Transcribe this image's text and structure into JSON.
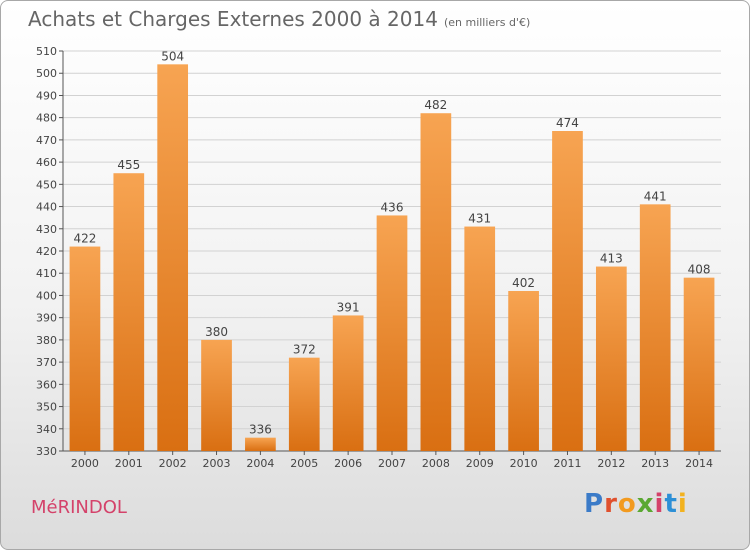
{
  "header": {
    "title": "Achats et Charges Externes 2000 à 2014",
    "subtitle": "(en milliers d'€)"
  },
  "footer": {
    "commune": "MéRINDOL",
    "logo_text": "Proxiti"
  },
  "colors": {
    "bar_top": "#f7a452",
    "bar_bottom": "#d96f12",
    "grid": "#d2d2d2",
    "axis": "#555555",
    "commune_text": "#d4426a",
    "logo_letters": [
      "#3b7bc8",
      "#e0502d",
      "#f29a1f",
      "#5aa832",
      "#d4426a",
      "#2c8fd6",
      "#f2b21f"
    ]
  },
  "chart_data": {
    "type": "bar",
    "title": "Achats et Charges Externes 2000 à 2014",
    "subtitle": "(en milliers d'€)",
    "xlabel": "",
    "ylabel": "",
    "categories": [
      "2000",
      "2001",
      "2002",
      "2003",
      "2004",
      "2005",
      "2006",
      "2007",
      "2008",
      "2009",
      "2010",
      "2011",
      "2012",
      "2013",
      "2014"
    ],
    "values": [
      422,
      455,
      504,
      380,
      336,
      372,
      391,
      436,
      482,
      431,
      402,
      474,
      413,
      441,
      408
    ],
    "ylim": [
      330,
      510
    ],
    "yticks": [
      330,
      340,
      350,
      360,
      370,
      380,
      390,
      400,
      410,
      420,
      430,
      440,
      450,
      460,
      470,
      480,
      490,
      500,
      510
    ],
    "grid": true,
    "legend": "none"
  }
}
